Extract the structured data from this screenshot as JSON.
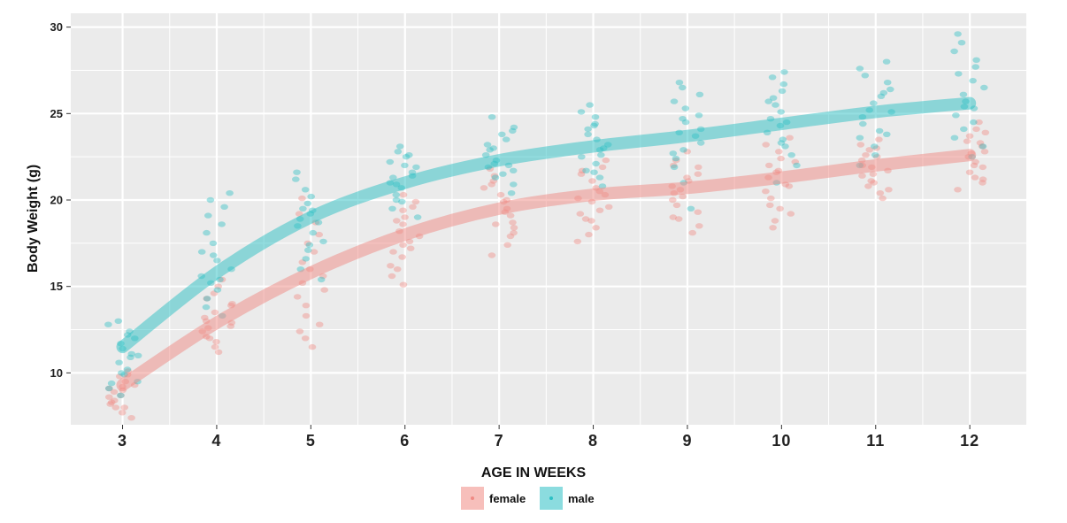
{
  "colors": {
    "female": "#f08a84",
    "male": "#2bbfc4",
    "panel": "#ebebeb",
    "grid": "#ffffff"
  },
  "chart_data": {
    "type": "scatter",
    "title": "",
    "xlabel": "AGE IN WEEKS",
    "ylabel": "Body Weight (g)",
    "x": [
      3,
      4,
      5,
      6,
      7,
      8,
      9,
      10,
      11,
      12
    ],
    "x_ticks": [
      "3",
      "4",
      "5",
      "6",
      "7",
      "8",
      "9",
      "10",
      "11",
      "12"
    ],
    "y_ticks": [
      "10",
      "15",
      "20",
      "25",
      "30"
    ],
    "xlim": [
      2.45,
      12.6
    ],
    "ylim": [
      7.0,
      30.8
    ],
    "grid": true,
    "legend_position": "bottom",
    "jitter": true,
    "series": [
      {
        "name": "female",
        "trend": [
          9.3,
          12.9,
          15.8,
          18.0,
          19.5,
          20.3,
          20.7,
          21.3,
          22.0,
          22.6
        ],
        "points": [
          [
            7.7,
            8.0,
            8.2,
            8.4,
            8.7,
            9.0,
            9.1,
            9.3,
            9.5,
            9.8,
            8.0,
            7.4,
            9.9,
            8.6,
            9.2,
            8.9,
            10.1,
            8.3
          ],
          [
            11.2,
            11.8,
            12.1,
            12.4,
            12.7,
            12.9,
            13.2,
            13.5,
            13.9,
            14.3,
            14.6,
            15.0,
            15.4,
            12.0,
            13.0,
            14.0,
            11.5,
            12.6
          ],
          [
            11.5,
            12.0,
            12.4,
            12.8,
            13.3,
            13.9,
            14.4,
            14.8,
            15.2,
            15.6,
            16.0,
            16.4,
            17.0,
            17.5,
            18.0,
            18.7,
            19.2,
            20.1
          ],
          [
            15.1,
            15.6,
            16.2,
            16.7,
            17.2,
            17.6,
            17.9,
            18.2,
            18.6,
            19.0,
            19.4,
            19.9,
            20.3,
            17.4,
            16.0,
            18.8,
            19.6,
            17.0
          ],
          [
            16.8,
            17.4,
            17.9,
            18.4,
            18.7,
            19.1,
            19.5,
            19.9,
            20.3,
            20.7,
            21.1,
            21.4,
            21.8,
            18.6,
            19.3,
            20.0,
            20.9,
            18.1
          ],
          [
            17.6,
            18.0,
            18.4,
            18.8,
            19.2,
            19.6,
            19.9,
            20.3,
            20.7,
            21.1,
            21.5,
            21.9,
            22.3,
            18.9,
            20.1,
            21.7,
            19.4,
            20.5
          ],
          [
            18.1,
            18.5,
            18.9,
            19.3,
            19.7,
            20.0,
            20.4,
            20.8,
            21.1,
            21.5,
            21.9,
            22.3,
            22.8,
            19.0,
            20.6,
            21.3,
            22.0,
            20.2
          ],
          [
            18.4,
            18.8,
            19.2,
            19.7,
            20.1,
            20.5,
            20.9,
            21.3,
            21.7,
            22.0,
            22.4,
            22.8,
            23.2,
            23.6,
            19.5,
            20.8,
            21.6,
            22.2
          ],
          [
            20.1,
            20.4,
            20.8,
            21.1,
            21.4,
            21.7,
            22.0,
            22.3,
            22.6,
            22.9,
            23.2,
            23.5,
            21.0,
            21.9,
            22.5,
            20.6,
            23.0,
            21.5
          ],
          [
            20.6,
            21.0,
            21.3,
            21.6,
            21.9,
            22.2,
            22.5,
            22.8,
            23.1,
            23.4,
            23.7,
            24.1,
            24.5,
            21.2,
            22.7,
            23.9,
            22.0,
            23.3
          ]
        ]
      },
      {
        "name": "male",
        "trend": [
          11.5,
          15.8,
          19.0,
          21.0,
          22.3,
          23.1,
          23.7,
          24.4,
          25.1,
          25.6
        ],
        "points": [
          [
            8.7,
            9.1,
            9.5,
            9.9,
            10.2,
            10.6,
            10.9,
            11.1,
            11.4,
            11.7,
            12.0,
            12.4,
            12.8,
            13.0,
            10.0,
            11.0,
            12.2,
            9.4
          ],
          [
            13.3,
            13.8,
            14.3,
            14.8,
            15.2,
            15.6,
            16.0,
            16.5,
            17.0,
            17.5,
            18.1,
            18.6,
            19.1,
            19.6,
            20.0,
            20.4,
            15.4,
            16.8
          ],
          [
            15.4,
            16.0,
            16.6,
            17.1,
            17.6,
            18.1,
            18.5,
            18.9,
            19.2,
            19.5,
            19.8,
            20.2,
            20.6,
            21.2,
            21.6,
            18.7,
            17.4,
            19.4
          ],
          [
            19.0,
            19.5,
            19.9,
            20.3,
            20.7,
            21.0,
            21.3,
            21.6,
            21.9,
            22.2,
            22.5,
            22.8,
            23.1,
            20.9,
            21.4,
            22.0,
            20.0,
            22.6
          ],
          [
            20.4,
            20.9,
            21.3,
            21.7,
            22.0,
            22.3,
            22.6,
            22.9,
            23.2,
            23.5,
            23.8,
            24.2,
            24.8,
            22.1,
            23.0,
            21.9,
            24.0,
            21.5
          ],
          [
            20.8,
            21.3,
            21.7,
            22.1,
            22.5,
            22.9,
            23.2,
            23.5,
            23.8,
            24.1,
            24.4,
            24.8,
            25.1,
            25.5,
            23.0,
            22.6,
            24.3,
            21.6
          ],
          [
            19.5,
            21.0,
            21.9,
            22.4,
            22.9,
            23.3,
            23.7,
            24.1,
            24.5,
            24.9,
            25.3,
            25.7,
            26.1,
            26.5,
            26.8,
            23.9,
            22.7,
            24.7
          ],
          [
            21.0,
            22.0,
            22.6,
            23.1,
            23.5,
            23.9,
            24.3,
            24.7,
            25.1,
            25.5,
            25.9,
            26.3,
            26.7,
            27.1,
            27.4,
            24.5,
            23.3,
            25.7
          ],
          [
            22.0,
            22.6,
            23.1,
            23.6,
            24.0,
            24.4,
            24.8,
            25.2,
            25.6,
            26.0,
            26.4,
            26.8,
            27.2,
            27.6,
            28.0,
            25.1,
            23.8,
            26.2
          ],
          [
            22.5,
            23.1,
            23.6,
            24.1,
            24.5,
            24.9,
            25.3,
            25.7,
            26.1,
            26.5,
            26.9,
            27.3,
            27.7,
            28.1,
            28.6,
            29.1,
            29.6,
            25.4
          ]
        ]
      }
    ]
  }
}
